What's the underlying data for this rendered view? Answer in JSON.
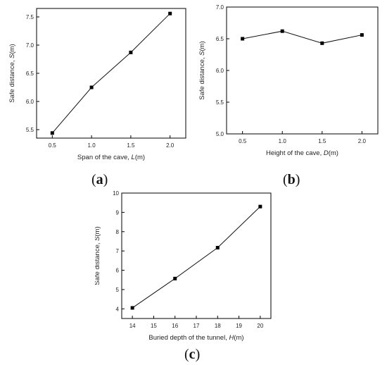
{
  "chart_data": [
    {
      "id": "a",
      "type": "line",
      "panel_label": "a",
      "xlabel": "Span of the cave, ",
      "xvar": "L",
      "xunit": "(m)",
      "ylabel": "Safe distance, ",
      "yvar": "S",
      "yunit": "(m)",
      "xlim": [
        0.3,
        2.2
      ],
      "ylim": [
        5.35,
        7.65
      ],
      "xticks": [
        "0.5",
        "1.0",
        "1.5",
        "2.0"
      ],
      "xtick_values": [
        0.5,
        1.0,
        1.5,
        2.0
      ],
      "yticks": [
        "5.5",
        "6.0",
        "6.5",
        "7.0",
        "7.5"
      ],
      "ytick_values": [
        5.5,
        6.0,
        6.5,
        7.0,
        7.5
      ],
      "series": [
        {
          "x": [
            0.5,
            1.0,
            1.5,
            2.0
          ],
          "y": [
            5.44,
            6.25,
            6.87,
            7.56
          ]
        }
      ]
    },
    {
      "id": "b",
      "type": "line",
      "panel_label": "b",
      "xlabel": "Height of the cave, ",
      "xvar": "D",
      "xunit": "(m)",
      "ylabel": "Safe distance, ",
      "yvar": "S",
      "yunit": "(m)",
      "xlim": [
        0.3,
        2.2
      ],
      "ylim": [
        5.0,
        7.0
      ],
      "xticks": [
        "0.5",
        "1.0",
        "1.5",
        "2.0"
      ],
      "xtick_values": [
        0.5,
        1.0,
        1.5,
        2.0
      ],
      "yticks": [
        "5.0",
        "5.5",
        "6.0",
        "6.5",
        "7.0"
      ],
      "ytick_values": [
        5.0,
        5.5,
        6.0,
        6.5,
        7.0
      ],
      "series": [
        {
          "x": [
            0.5,
            1.0,
            1.5,
            2.0
          ],
          "y": [
            6.5,
            6.62,
            6.43,
            6.56
          ]
        }
      ]
    },
    {
      "id": "c",
      "type": "line",
      "panel_label": "c",
      "xlabel": "Buried depth of the tunnel, ",
      "xvar": "H",
      "xunit": "(m)",
      "ylabel": "Safe distance, ",
      "yvar": "S",
      "yunit": "(m)",
      "xlim": [
        13.5,
        20.5
      ],
      "ylim": [
        3.5,
        10.0
      ],
      "xticks": [
        "14",
        "15",
        "16",
        "17",
        "18",
        "19",
        "20"
      ],
      "xtick_values": [
        14,
        15,
        16,
        17,
        18,
        19,
        20
      ],
      "yticks": [
        "4",
        "5",
        "6",
        "7",
        "8",
        "9",
        "10"
      ],
      "ytick_values": [
        4,
        5,
        6,
        7,
        8,
        9,
        10
      ],
      "series": [
        {
          "x": [
            14,
            16,
            18,
            20
          ],
          "y": [
            4.05,
            5.57,
            7.17,
            9.3
          ]
        }
      ]
    }
  ]
}
